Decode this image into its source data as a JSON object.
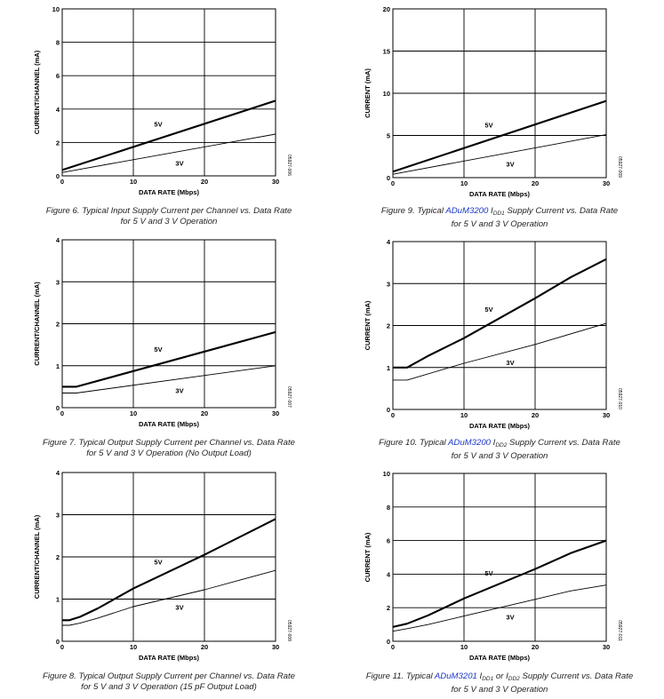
{
  "chart_data": [
    {
      "type": "line",
      "xlabel": "DATA RATE (Mbps)",
      "ylabel": "CURRENT/CHANNEL (mA)",
      "xlim": [
        0,
        30
      ],
      "ylim": [
        0,
        10
      ],
      "xticks": [
        0,
        10,
        20,
        30
      ],
      "yticks": [
        0,
        2,
        4,
        6,
        8,
        10
      ],
      "grid": true,
      "series": [
        {
          "name": "5V",
          "x": [
            0,
            30
          ],
          "y": [
            0.35,
            4.5
          ],
          "weight": "heavy"
        },
        {
          "name": "3V",
          "x": [
            0,
            30
          ],
          "y": [
            0.2,
            2.5
          ],
          "weight": "light"
        }
      ],
      "code": "05927-006",
      "caption": {
        "prefix": "",
        "link": "",
        "line1": "Figure 6. Typical Input Supply Current per Channel vs. Data Rate",
        "line2": "for 5 V and 3 V Operation"
      }
    },
    {
      "type": "line",
      "xlabel": "DATA RATE (Mbps)",
      "ylabel": "CURRENT/CHANNEL (mA)",
      "xlim": [
        0,
        30
      ],
      "ylim": [
        0,
        4
      ],
      "xticks": [
        0,
        10,
        20,
        30
      ],
      "yticks": [
        0,
        1,
        2,
        3,
        4
      ],
      "grid": true,
      "series": [
        {
          "name": "5V",
          "x": [
            0,
            2,
            30
          ],
          "y": [
            0.5,
            0.5,
            1.8
          ],
          "weight": "heavy"
        },
        {
          "name": "3V",
          "x": [
            0,
            2,
            30
          ],
          "y": [
            0.35,
            0.35,
            1.0
          ],
          "weight": "light"
        }
      ],
      "code": "05927-007",
      "caption": {
        "prefix": "",
        "link": "",
        "line1": "Figure 7. Typical Output Supply Current per Channel vs. Data Rate",
        "line2": "for 5 V and 3 V Operation (No Output Load)"
      }
    },
    {
      "type": "line",
      "xlabel": "DATA RATE (Mbps)",
      "ylabel": "CURRENT/CHANNEL (mA)",
      "xlim": [
        0,
        30
      ],
      "ylim": [
        0,
        4
      ],
      "xticks": [
        0,
        10,
        20,
        30
      ],
      "yticks": [
        0,
        1,
        2,
        3,
        4
      ],
      "grid": true,
      "series": [
        {
          "name": "5V",
          "x": [
            0,
            1,
            2.5,
            5,
            10,
            20,
            30
          ],
          "y": [
            0.5,
            0.5,
            0.58,
            0.78,
            1.25,
            2.05,
            2.9
          ],
          "weight": "heavy"
        },
        {
          "name": "3V",
          "x": [
            0,
            1,
            2.5,
            5,
            10,
            20,
            25,
            30
          ],
          "y": [
            0.38,
            0.38,
            0.43,
            0.55,
            0.82,
            1.22,
            1.45,
            1.68
          ],
          "weight": "light"
        }
      ],
      "code": "05927-008",
      "caption": {
        "prefix": "",
        "link": "",
        "line1": "Figure 8. Typical Output Supply Current per Channel vs. Data Rate",
        "line2": "for 5 V and 3 V Operation (15 pF Output Load)"
      }
    },
    {
      "type": "line",
      "xlabel": "DATA RATE (Mbps)",
      "ylabel": "CURRENT (mA)",
      "xlim": [
        0,
        30
      ],
      "ylim": [
        0,
        20
      ],
      "xticks": [
        0,
        10,
        20,
        30
      ],
      "yticks": [
        0,
        5,
        10,
        15,
        20
      ],
      "grid": true,
      "series": [
        {
          "name": "5V",
          "x": [
            0,
            30
          ],
          "y": [
            0.7,
            9.1
          ],
          "weight": "heavy"
        },
        {
          "name": "3V",
          "x": [
            0,
            30
          ],
          "y": [
            0.4,
            5.1
          ],
          "weight": "light"
        }
      ],
      "code": "05927-009",
      "caption": {
        "prefix": "Figure 9. Typical ",
        "link": "ADuM3200",
        "line1_tail": " I",
        "sub1": "DD1",
        "line1_end": " Supply Current vs. Data Rate",
        "line2": "for 5 V and 3 V Operation"
      }
    },
    {
      "type": "line",
      "xlabel": "DATA RATE (Mbps)",
      "ylabel": "CURRENT (mA)",
      "xlim": [
        0,
        30
      ],
      "ylim": [
        0,
        4
      ],
      "xticks": [
        0,
        10,
        20,
        30
      ],
      "yticks": [
        0,
        1,
        2,
        3,
        4
      ],
      "grid": true,
      "series": [
        {
          "name": "5V",
          "x": [
            0,
            2,
            5,
            10,
            20,
            25,
            30
          ],
          "y": [
            1.0,
            1.0,
            1.28,
            1.7,
            2.65,
            3.15,
            3.58
          ],
          "weight": "heavy"
        },
        {
          "name": "3V",
          "x": [
            0,
            2,
            10,
            20,
            30
          ],
          "y": [
            0.7,
            0.7,
            1.1,
            1.55,
            2.05
          ],
          "weight": "light"
        }
      ],
      "code": "05927-010",
      "caption": {
        "prefix": "Figure 10. Typical ",
        "link": "ADuM3200",
        "line1_tail": " I",
        "sub1": "DD2",
        "line1_end": " Supply Current vs. Data Rate",
        "line2": "for 5 V and 3 V Operation"
      }
    },
    {
      "type": "line",
      "xlabel": "DATA RATE (Mbps)",
      "ylabel": "CURRENT (mA)",
      "xlim": [
        0,
        30
      ],
      "ylim": [
        0,
        10
      ],
      "xticks": [
        0,
        10,
        20,
        30
      ],
      "yticks": [
        0,
        2,
        4,
        6,
        8,
        10
      ],
      "grid": true,
      "series": [
        {
          "name": "5V",
          "x": [
            0,
            2,
            5,
            10,
            20,
            25,
            30
          ],
          "y": [
            0.85,
            1.05,
            1.55,
            2.55,
            4.3,
            5.25,
            6.0
          ],
          "weight": "heavy"
        },
        {
          "name": "3V",
          "x": [
            0,
            2,
            5,
            10,
            20,
            25,
            30
          ],
          "y": [
            0.6,
            0.75,
            1.0,
            1.5,
            2.5,
            3.0,
            3.35
          ],
          "weight": "light"
        }
      ],
      "code": "05927-011",
      "caption": {
        "prefix": "Figure 11. Typical ",
        "link": "ADuM3201",
        "line1_tail": " I",
        "sub1": "DD1",
        "mid": " or I",
        "sub2": "DD2",
        "line1_end": " Supply Current vs. Data Rate",
        "line2": "for 5 V and 3 V Operation"
      }
    }
  ]
}
